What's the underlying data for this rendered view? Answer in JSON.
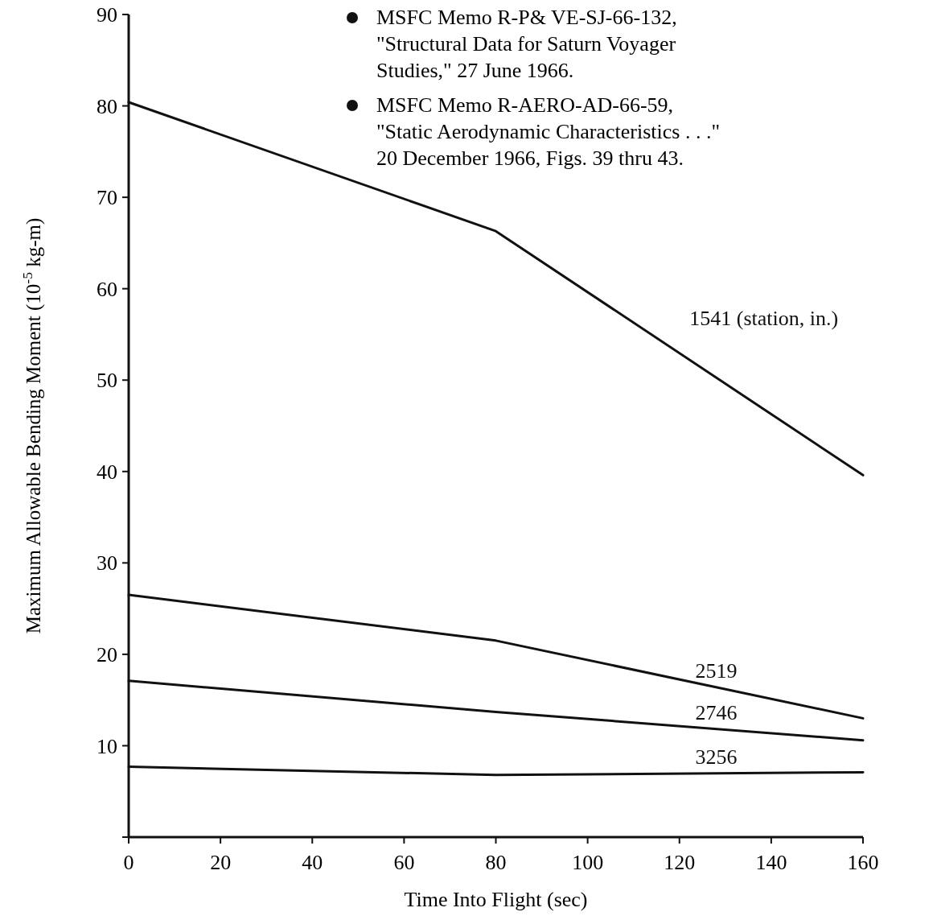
{
  "chart_data": {
    "type": "line",
    "xlabel": "Time Into Flight (sec)",
    "ylabel": "Maximum Allowable Bending Moment (10$^{-5}$ kg-m)",
    "x": [
      0,
      80,
      160
    ],
    "series": [
      {
        "name": "1541 (station, in.)",
        "color": "#111111",
        "values": [
          80.4,
          66.3,
          39.6
        ]
      },
      {
        "name": "2519",
        "color": "#111111",
        "values": [
          26.5,
          21.5,
          13
        ]
      },
      {
        "name": "2746",
        "color": "#111111",
        "values": [
          17.1,
          13.7,
          10.6
        ]
      },
      {
        "name": "3256",
        "color": "#111111",
        "values": [
          7.7,
          6.8,
          7.1
        ]
      }
    ],
    "xlim": [
      0,
      160
    ],
    "xticks": [
      0,
      20,
      40,
      60,
      80,
      100,
      120,
      140,
      160
    ],
    "ylim": [
      0,
      90
    ],
    "yticks": [
      {
        "value": 0,
        "label": null
      },
      10,
      20,
      30,
      40,
      50,
      60,
      70,
      80,
      90
    ],
    "grid": false,
    "legend": false,
    "marker": "none",
    "line_style": "solid",
    "annotations": [
      "MSFC Memo R-P& VE-SJ-66-132,\n\"Structural Data for Saturn Voyager\nStudies,\" 27 June 1966.",
      "MSFC Memo R-AERO-AD-66-59,\n\"Static Aerodynamic Characteristics . . .\"\n20 December 1966,  Figs. 39 thru 43."
    ]
  }
}
